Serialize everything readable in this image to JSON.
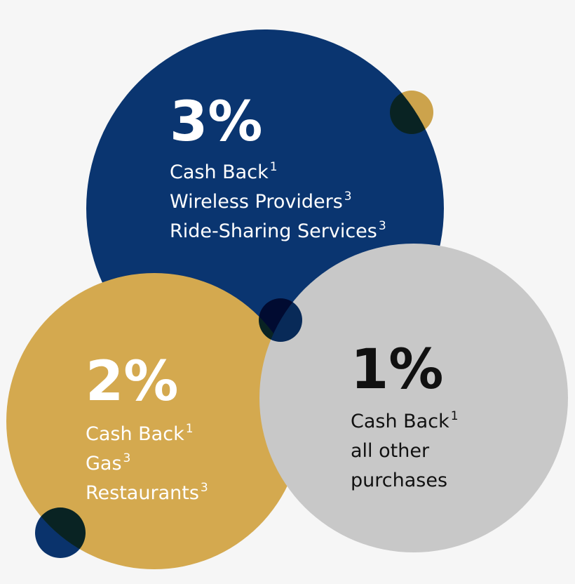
{
  "circles": [
    {
      "percent": "3%",
      "lines": [
        {
          "text": "Cash Back",
          "sup": "1"
        },
        {
          "text": "Wireless Providers",
          "sup": "3"
        },
        {
          "text": "Ride-Sharing Services",
          "sup": "3"
        }
      ]
    },
    {
      "percent": "2%",
      "lines": [
        {
          "text": "Cash Back",
          "sup": "1"
        },
        {
          "text": "Gas",
          "sup": "3"
        },
        {
          "text": "Restaurants",
          "sup": "3"
        }
      ]
    },
    {
      "percent": "1%",
      "lines": [
        {
          "text": "Cash Back",
          "sup": "1"
        },
        {
          "text": "all other"
        },
        {
          "text": "purchases"
        }
      ]
    }
  ]
}
